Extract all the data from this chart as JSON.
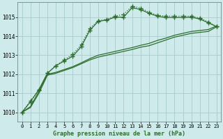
{
  "title": "Graphe pression niveau de la mer (hPa)",
  "background_color": "#ceeaea",
  "grid_color": "#aacccc",
  "line_color": "#2d6e2d",
  "xlim": [
    -0.5,
    23.5
  ],
  "ylim": [
    1009.5,
    1015.8
  ],
  "yticks": [
    1010,
    1011,
    1012,
    1013,
    1014,
    1015
  ],
  "xticks": [
    0,
    1,
    2,
    3,
    4,
    5,
    6,
    7,
    8,
    9,
    10,
    11,
    12,
    13,
    14,
    15,
    16,
    17,
    18,
    19,
    20,
    21,
    22,
    23
  ],
  "series": [
    {
      "x": [
        0,
        1,
        2,
        3,
        4,
        5,
        6,
        7,
        8,
        9,
        10,
        11,
        12,
        13,
        14,
        15,
        16,
        17,
        18,
        19,
        20,
        21,
        22,
        23
      ],
      "y": [
        1010.0,
        1010.6,
        1011.15,
        1012.05,
        1012.45,
        1012.75,
        1013.05,
        1013.55,
        1014.4,
        1014.82,
        1014.88,
        1015.05,
        1015.15,
        1015.58,
        1015.48,
        1015.25,
        1015.1,
        1015.05,
        1015.05,
        1015.05,
        1015.05,
        1014.95,
        1014.75,
        1014.5
      ],
      "marker": "+",
      "linestyle": "dotted",
      "linewidth": 0.9,
      "markersize": 4
    },
    {
      "x": [
        0,
        1,
        2,
        3,
        4,
        5,
        6,
        7,
        8,
        9,
        10,
        11,
        12,
        13,
        14,
        15,
        16,
        17,
        18,
        19,
        20,
        21,
        22,
        23
      ],
      "y": [
        1010.0,
        1010.55,
        1011.2,
        1012.05,
        1012.45,
        1012.7,
        1012.95,
        1013.45,
        1014.3,
        1014.78,
        1014.85,
        1015.0,
        1015.0,
        1015.5,
        1015.4,
        1015.2,
        1015.05,
        1014.98,
        1014.98,
        1014.98,
        1015.0,
        1014.9,
        1014.7,
        1014.5
      ],
      "marker": "+",
      "linestyle": "solid",
      "linewidth": 0.9,
      "markersize": 4
    },
    {
      "x": [
        0,
        1,
        2,
        3,
        4,
        5,
        6,
        7,
        8,
        9,
        10,
        11,
        12,
        13,
        14,
        15,
        16,
        17,
        18,
        19,
        20,
        21,
        22,
        23
      ],
      "y": [
        1010.0,
        1010.25,
        1011.0,
        1011.95,
        1012.05,
        1012.2,
        1012.35,
        1012.55,
        1012.75,
        1012.9,
        1013.0,
        1013.1,
        1013.2,
        1013.3,
        1013.42,
        1013.5,
        1013.65,
        1013.8,
        1013.95,
        1014.05,
        1014.15,
        1014.2,
        1014.25,
        1014.5
      ],
      "marker": null,
      "linestyle": "solid",
      "linewidth": 0.9,
      "markersize": 0
    },
    {
      "x": [
        0,
        1,
        2,
        3,
        4,
        5,
        6,
        7,
        8,
        9,
        10,
        11,
        12,
        13,
        14,
        15,
        16,
        17,
        18,
        19,
        20,
        21,
        22,
        23
      ],
      "y": [
        1010.0,
        1010.3,
        1011.1,
        1012.0,
        1012.1,
        1012.25,
        1012.4,
        1012.6,
        1012.82,
        1013.0,
        1013.1,
        1013.2,
        1013.3,
        1013.4,
        1013.52,
        1013.62,
        1013.78,
        1013.9,
        1014.05,
        1014.15,
        1014.25,
        1014.3,
        1014.35,
        1014.55
      ],
      "marker": null,
      "linestyle": "solid",
      "linewidth": 0.9,
      "markersize": 0
    }
  ]
}
